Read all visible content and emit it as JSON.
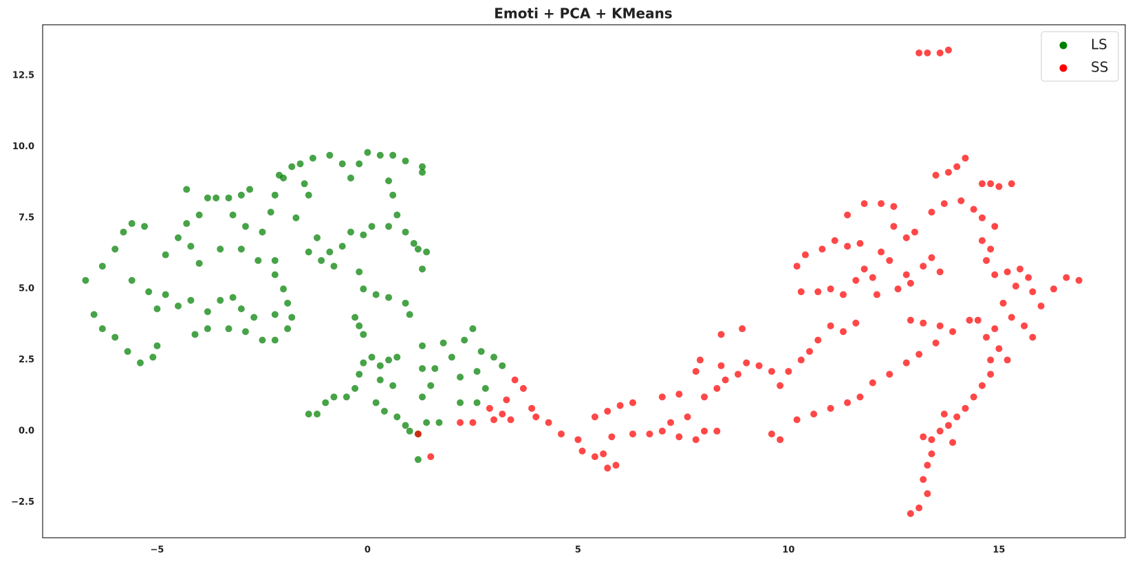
{
  "chart_data": {
    "type": "scatter",
    "title": "Emoti + PCA + KMeans",
    "xlim": [
      -7.72,
      18.0
    ],
    "ylim": [
      -3.75,
      14.29
    ],
    "xticks": [
      {
        "value": -5,
        "label": "−5"
      },
      0,
      5,
      10,
      15
    ],
    "yticks": [
      {
        "value": -2.5,
        "label": "−2.5"
      },
      {
        "value": 0,
        "label": "0.0"
      },
      2.5,
      {
        "value": 5,
        "label": "5.0"
      },
      7.5,
      {
        "value": 10,
        "label": "10.0"
      },
      12.5
    ],
    "grid": false,
    "legend": "upper right",
    "series": [
      {
        "name": "LS",
        "color": "#008000",
        "x": [
          -6.7,
          -6.3,
          -6,
          -5.8,
          -5.6,
          -5.3,
          -6.5,
          -6.3,
          -6,
          -5.7,
          -5.4,
          -5.1,
          -5,
          -5.6,
          -5.2,
          -5,
          -4.5,
          -4.2,
          -4.8,
          -4.5,
          -4.8,
          -4.2,
          -4,
          -4.3,
          -4,
          -4.3,
          -3.8,
          -3.6,
          -3.3,
          -3,
          -2.8,
          -3.2,
          -2.9,
          -2.5,
          -3.5,
          -3,
          -2.6,
          -2.2,
          -3.8,
          -3.5,
          -3.2,
          -3,
          -2.7,
          -3.3,
          -3.8,
          -4.1,
          -2.9,
          -2.5,
          -2.2,
          -1.9,
          -1.8,
          -2.2,
          -1.9,
          -2,
          -2.2,
          -2.3,
          -2.2,
          -2,
          -1.8,
          -2.1,
          -1.6,
          -1.3,
          -0.9,
          -1.5,
          -1.4,
          -1.7,
          -1.4,
          -1.1,
          -0.8,
          -0.9,
          -1.2,
          -0.6,
          -0.4,
          -0.1,
          0.1,
          -0.6,
          -0.4,
          -0.2,
          0.3,
          0,
          0.6,
          0.9,
          1.3,
          1.3,
          0.5,
          0.6,
          0.7,
          0.5,
          0.9,
          1.1,
          1.2,
          1.4,
          1.3,
          -0.2,
          -0.1,
          0.2,
          0.5,
          0.9,
          1,
          -0.3,
          -0.2,
          -0.1,
          -1.4,
          -1.2,
          -1,
          -0.8,
          -0.5,
          -0.3,
          -0.2,
          -0.1,
          0.1,
          0.3,
          0.5,
          0.7,
          0.3,
          0.6,
          0.2,
          0.4,
          0.7,
          0.9,
          1,
          1.2,
          1.2,
          1.4,
          1.3,
          1.3,
          1.3,
          1.6,
          1.8,
          2,
          2.3,
          2.5,
          2.2,
          2.6,
          2.8,
          2.7,
          3,
          3.2,
          2.2,
          2.6,
          1.7,
          1.5
        ],
        "values": [
          5.3,
          5.8,
          6.4,
          7,
          7.3,
          7.2,
          4.1,
          3.6,
          3.3,
          2.8,
          2.4,
          2.6,
          3,
          5.3,
          4.9,
          4.3,
          4.4,
          4.6,
          4.8,
          6.8,
          6.2,
          6.5,
          5.9,
          7.3,
          7.6,
          8.5,
          8.2,
          8.2,
          8.2,
          8.3,
          8.5,
          7.6,
          7.2,
          7,
          6.4,
          6.4,
          6,
          6,
          4.2,
          4.6,
          4.7,
          4.3,
          4,
          3.6,
          3.6,
          3.4,
          3.5,
          3.2,
          3.2,
          3.6,
          4,
          4.1,
          4.5,
          5,
          5.5,
          7.7,
          8.3,
          8.9,
          9.3,
          9,
          9.4,
          9.6,
          9.7,
          8.7,
          8.3,
          7.5,
          6.3,
          6,
          5.8,
          6.3,
          6.8,
          6.5,
          7,
          6.9,
          7.2,
          9.4,
          8.9,
          9.4,
          9.7,
          9.8,
          9.7,
          9.5,
          9.3,
          9.1,
          8.8,
          8.3,
          7.6,
          7.2,
          7,
          6.6,
          6.4,
          6.3,
          5.7,
          5.6,
          5,
          4.8,
          4.7,
          4.5,
          4.1,
          4,
          3.7,
          3.4,
          0.6,
          0.6,
          1,
          1.2,
          1.2,
          1.5,
          2,
          2.4,
          2.6,
          2.3,
          2.5,
          2.6,
          1.8,
          1.6,
          1,
          0.7,
          0.5,
          0.2,
          0,
          -0.1,
          -1,
          0.3,
          1.2,
          2.2,
          3,
          2.2,
          3.1,
          2.6,
          3.2,
          3.6,
          1.9,
          2.1,
          1.5,
          2.8,
          2.6,
          2.3,
          1,
          1,
          0.3,
          1.6
        ]
      },
      {
        "name": "SS",
        "color": "#ff0000",
        "x": [
          1.2,
          1.5,
          2.2,
          2.5,
          2.9,
          3,
          3.2,
          3.4,
          3.3,
          3.5,
          3.7,
          3.9,
          4,
          4.3,
          4.6,
          5,
          5.1,
          5.4,
          5.7,
          5.9,
          5.6,
          5.4,
          5.7,
          6,
          6.3,
          5.8,
          6.3,
          6.7,
          7,
          7.4,
          7.8,
          7.2,
          7.6,
          8,
          8.3,
          7,
          7.4,
          7.8,
          8,
          8.3,
          8.5,
          8.8,
          8.4,
          7.9,
          8.4,
          8.9,
          9,
          9.3,
          9.6,
          9.8,
          10,
          10.3,
          10.5,
          10.7,
          11,
          11.3,
          11.6,
          9.6,
          9.8,
          10.2,
          10.6,
          11,
          11.4,
          11.7,
          12,
          12.4,
          12.8,
          13.1,
          13.5,
          13.9,
          14.3,
          13.2,
          12.9,
          13.6,
          14.5,
          14.8,
          15,
          15.2,
          10.2,
          10.4,
          10.8,
          11.1,
          11.4,
          11.7,
          10.3,
          10.7,
          11,
          11.3,
          11.6,
          11.8,
          12,
          12.1,
          12.4,
          12.6,
          12.2,
          11.4,
          11.8,
          12.2,
          12.5,
          12.5,
          12.8,
          13,
          13.2,
          13.4,
          13.6,
          12.8,
          12.9,
          13.1,
          13.3,
          13.6,
          13.8,
          13.5,
          13.8,
          14,
          14.2,
          13.4,
          13.7,
          14.1,
          14.4,
          14.6,
          14.8,
          15,
          15.3,
          14.6,
          14.9,
          14.6,
          14.8,
          14.7,
          14.9,
          15.2,
          15.5,
          15.7,
          15.4,
          15.8,
          16,
          16.3,
          16.6,
          16.9,
          15.1,
          15.3,
          15.6,
          15.8,
          14.9,
          14.7,
          14.8,
          14.6,
          14.4,
          14.2,
          14,
          13.8,
          13.6,
          13.4,
          13.2,
          13.4,
          13.3,
          13.2,
          13.3,
          13.1,
          12.9,
          13.9,
          13.7
        ],
        "values": [
          -0.1,
          -0.9,
          0.3,
          0.3,
          0.8,
          0.4,
          0.6,
          0.4,
          1.1,
          1.8,
          1.5,
          0.8,
          0.5,
          0.3,
          -0.1,
          -0.3,
          -0.7,
          -0.9,
          -1.3,
          -1.2,
          -0.8,
          0.5,
          0.7,
          0.9,
          1,
          -0.2,
          -0.1,
          -0.1,
          0,
          -0.2,
          -0.3,
          0.3,
          0.5,
          0,
          0,
          1.2,
          1.3,
          2.1,
          1.2,
          1.5,
          1.8,
          2,
          2.3,
          2.5,
          3.4,
          3.6,
          2.4,
          2.3,
          2.1,
          1.6,
          2.1,
          2.5,
          2.8,
          3.2,
          3.7,
          3.5,
          3.8,
          -0.1,
          -0.3,
          0.4,
          0.6,
          0.8,
          1,
          1.2,
          1.7,
          2,
          2.4,
          2.7,
          3.1,
          3.5,
          3.9,
          3.8,
          3.9,
          3.7,
          3.9,
          2.5,
          2.9,
          2.5,
          5.8,
          6.2,
          6.4,
          6.7,
          6.5,
          6.6,
          4.9,
          4.9,
          5,
          4.8,
          5.3,
          5.7,
          5.4,
          4.8,
          6,
          5,
          6.3,
          7.6,
          8,
          8,
          7.9,
          7.2,
          6.8,
          7,
          5.8,
          6.1,
          5.6,
          5.5,
          5.2,
          13.3,
          13.3,
          13.3,
          13.4,
          9,
          9.1,
          9.3,
          9.6,
          7.7,
          8,
          8.1,
          7.8,
          8.7,
          8.7,
          8.6,
          8.7,
          7.5,
          7.2,
          6.7,
          6.4,
          6,
          5.5,
          5.6,
          5.7,
          5.4,
          5.1,
          4.9,
          4.4,
          5,
          5.4,
          5.3,
          4.5,
          4,
          3.7,
          3.3,
          3.6,
          3.3,
          2,
          1.6,
          1.2,
          0.8,
          0.5,
          0.2,
          0,
          -0.3,
          -0.2,
          -0.8,
          -1.2,
          -1.7,
          -2.2,
          -2.7,
          -2.9,
          -0.4,
          0.6
        ]
      }
    ]
  }
}
